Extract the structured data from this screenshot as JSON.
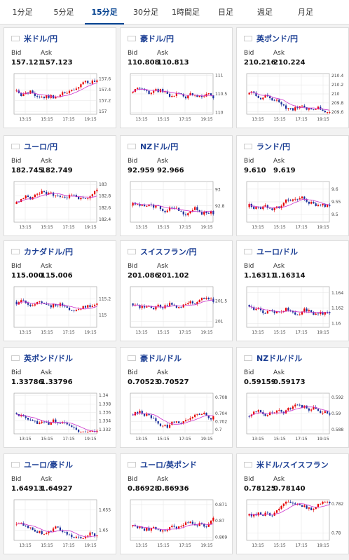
{
  "tabs": [
    {
      "label": "1分足"
    },
    {
      "label": "5分足"
    },
    {
      "label": "15分足"
    },
    {
      "label": "30分足"
    },
    {
      "label": "1時間足"
    },
    {
      "label": "日足"
    },
    {
      "label": "週足"
    },
    {
      "label": "月足"
    }
  ],
  "active_tab": 2,
  "bid_label": "Bid",
  "ask_label": "Ask",
  "colors": {
    "accent": "#003f8e",
    "pair_name": "#1c3f94",
    "up_candle": "#e60000",
    "down_candle": "#1a2f9a",
    "ma_line": "#cc33cc"
  },
  "pairs": [
    {
      "name": "米ドル/円",
      "flag": "us",
      "bid": "157.121",
      "ask": "157.123",
      "chart_data": {
        "type": "candlestick",
        "x_ticks": [
          "13:15",
          "15:15",
          "17:15",
          "19:15"
        ],
        "y_ticks": [
          "157.6",
          "157.4",
          "157.2",
          "157"
        ],
        "ylim": [
          156.95,
          157.7
        ]
      }
    },
    {
      "name": "豪ドル/円",
      "flag": "au",
      "bid": "110.808",
      "ask": "110.813",
      "chart_data": {
        "type": "candlestick",
        "x_ticks": [
          "13:15",
          "15:15",
          "17:15",
          "19:15"
        ],
        "y_ticks": [
          "111",
          "110.5",
          "110"
        ],
        "ylim": [
          109.95,
          111.05
        ]
      }
    },
    {
      "name": "英ポンド/円",
      "flag": "gb",
      "bid": "210.216",
      "ask": "210.224",
      "chart_data": {
        "type": "candlestick",
        "x_ticks": [
          "13:15",
          "15:15",
          "17:15",
          "19:15"
        ],
        "y_ticks": [
          "210.4",
          "210.2",
          "210",
          "209.8",
          "209.6"
        ],
        "ylim": [
          209.55,
          210.45
        ]
      }
    },
    {
      "name": "ユーロ/円",
      "flag": "eu",
      "bid": "182.745",
      "ask": "182.749",
      "chart_data": {
        "type": "candlestick",
        "x_ticks": [
          "13:15",
          "15:15",
          "17:15",
          "19:15"
        ],
        "y_ticks": [
          "183",
          "182.8",
          "182.6",
          "182.4"
        ],
        "ylim": [
          182.35,
          183.05
        ]
      }
    },
    {
      "name": "NZドル/円",
      "flag": "nz",
      "bid": "92.959",
      "ask": "92.966",
      "chart_data": {
        "type": "candlestick",
        "x_ticks": [
          "13:15",
          "15:15",
          "17:15",
          "19:15"
        ],
        "y_ticks": [
          "93",
          "92.8"
        ],
        "ylim": [
          92.6,
          93.1
        ]
      }
    },
    {
      "name": "ランド/円",
      "flag": "za",
      "bid": "9.610",
      "ask": "9.619",
      "chart_data": {
        "type": "candlestick",
        "x_ticks": [
          "13:15",
          "15:15",
          "17:15",
          "19:15"
        ],
        "y_ticks": [
          "9.6",
          "9.55",
          "9.5"
        ],
        "ylim": [
          9.47,
          9.63
        ]
      }
    },
    {
      "name": "カナダドル/円",
      "flag": "ca",
      "bid": "115.000",
      "ask": "115.006",
      "chart_data": {
        "type": "candlestick",
        "x_ticks": [
          "13:15",
          "15:15",
          "17:15",
          "19:15"
        ],
        "y_ticks": [
          "115.2",
          "115"
        ],
        "ylim": [
          114.85,
          115.35
        ]
      }
    },
    {
      "name": "スイスフラン/円",
      "flag": "ch",
      "bid": "201.086",
      "ask": "201.102",
      "chart_data": {
        "type": "candlestick",
        "x_ticks": [
          "13:15",
          "15:15",
          "17:15",
          "19:15"
        ],
        "y_ticks": [
          "201.5",
          "201"
        ],
        "ylim": [
          200.85,
          201.85
        ]
      }
    },
    {
      "name": "ユーロ/ドル",
      "flag": "eu",
      "bid": "1.16311",
      "ask": "1.16314",
      "chart_data": {
        "type": "candlestick",
        "x_ticks": [
          "13:15",
          "15:15",
          "17:15",
          "19:15"
        ],
        "y_ticks": [
          "1.164",
          "1.162",
          "1.16"
        ],
        "ylim": [
          1.1595,
          1.1648
        ]
      }
    },
    {
      "name": "英ポンド/ドル",
      "flag": "gb",
      "bid": "1.33786",
      "ask": "1.33796",
      "chart_data": {
        "type": "candlestick",
        "x_ticks": [
          "13:15",
          "15:15",
          "17:15",
          "19:15"
        ],
        "y_ticks": [
          "1.34",
          "1.338",
          "1.336",
          "1.334",
          "1.332"
        ],
        "ylim": [
          1.331,
          1.3405
        ]
      }
    },
    {
      "name": "豪ドル/ドル",
      "flag": "au",
      "bid": "0.70523",
      "ask": "0.70527",
      "chart_data": {
        "type": "candlestick",
        "x_ticks": [
          "13:15",
          "15:15",
          "17:15",
          "19:15"
        ],
        "y_ticks": [
          "0.708",
          "0.704",
          "0.702",
          "0.7"
        ],
        "ylim": [
          0.699,
          0.709
        ]
      }
    },
    {
      "name": "NZドル/ドル",
      "flag": "nz",
      "bid": "0.59159",
      "ask": "0.59173",
      "chart_data": {
        "type": "candlestick",
        "x_ticks": [
          "13:15",
          "15:15",
          "17:15",
          "19:15"
        ],
        "y_ticks": [
          "0.592",
          "0.59",
          "0.588"
        ],
        "ylim": [
          0.5875,
          0.5925
        ]
      }
    },
    {
      "name": "ユーロ/豪ドル",
      "flag": "eu",
      "bid": "1.64913",
      "ask": "1.64927",
      "chart_data": {
        "type": "candlestick",
        "x_ticks": [
          "13:15",
          "15:15",
          "17:15",
          "19:15"
        ],
        "y_ticks": [
          "1.655",
          "1.65"
        ],
        "ylim": [
          1.6475,
          1.6575
        ]
      }
    },
    {
      "name": "ユーロ/英ポンド",
      "flag": "eu",
      "bid": "0.86928",
      "ask": "0.86936",
      "chart_data": {
        "type": "candlestick",
        "x_ticks": [
          "13:15",
          "15:15",
          "17:15",
          "19:15"
        ],
        "y_ticks": [
          "0.871",
          "0.87",
          "0.869"
        ],
        "ylim": [
          0.8688,
          0.8713
        ]
      }
    },
    {
      "name": "米ドル/スイスフラン",
      "flag": "ch",
      "bid": "0.78125",
      "ask": "0.78140",
      "chart_data": {
        "type": "candlestick",
        "x_ticks": [
          "13:15",
          "15:15",
          "17:15",
          "19:15"
        ],
        "y_ticks": [
          "0.782",
          "0.78"
        ],
        "ylim": [
          0.7795,
          0.7823
        ]
      }
    }
  ]
}
